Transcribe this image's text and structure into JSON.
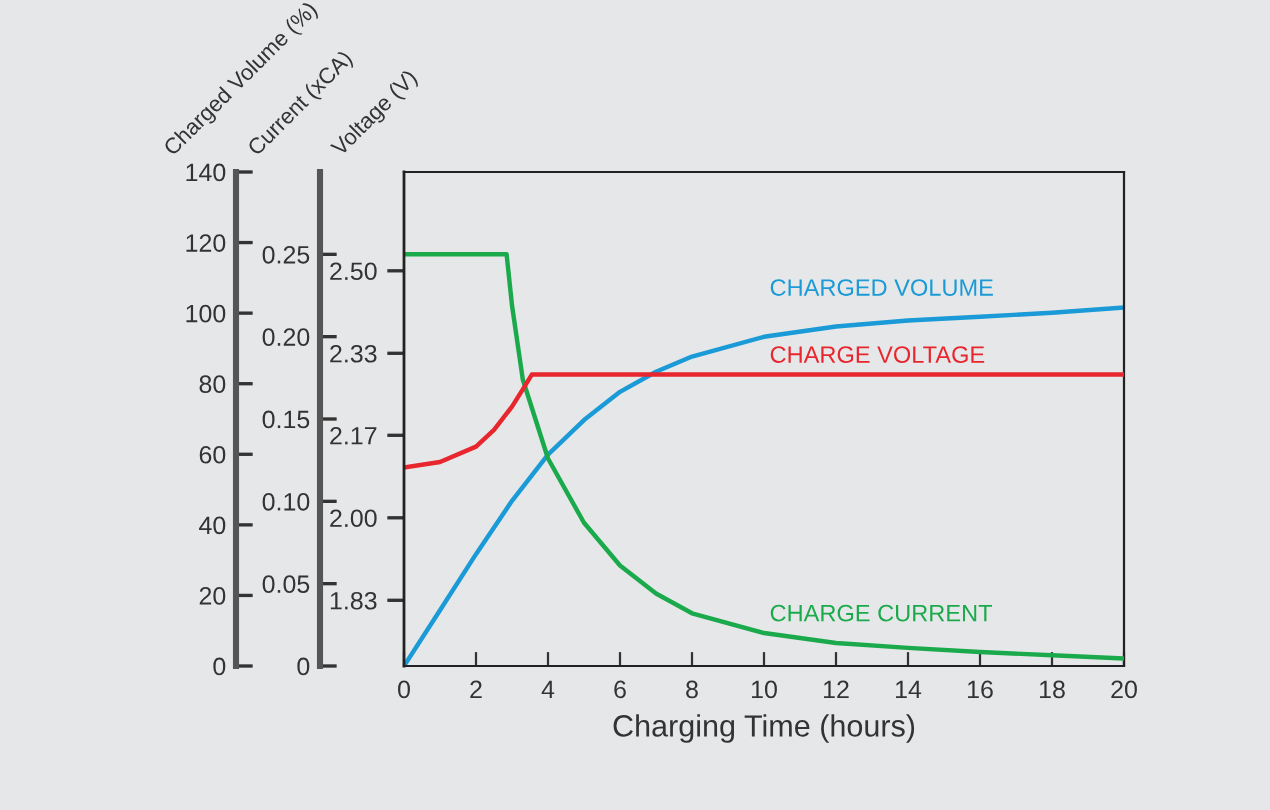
{
  "chart_data": {
    "type": "line",
    "xlabel": "Charging Time (hours)",
    "ylabel": "Charged Volume (%)",
    "y2label": "Current (xCA)",
    "y3label": "Voltage (V)",
    "xlim": [
      0,
      20
    ],
    "xticks": [
      0,
      2,
      4,
      6,
      8,
      10,
      12,
      14,
      16,
      18,
      20
    ],
    "ylim": [
      0,
      140
    ],
    "yticks": [
      0,
      20,
      40,
      60,
      80,
      100,
      120,
      140
    ],
    "y2lim": [
      0,
      0.3
    ],
    "y2ticks": [
      0,
      0.05,
      {
        "value": 0.1,
        "label": "0.10"
      },
      0.15,
      {
        "value": 0.2,
        "label": "0.20"
      },
      0.25
    ],
    "y3lim": [
      1.7,
      2.7
    ],
    "y3ticks": [
      {
        "value": 1.833,
        "label": "1.83"
      },
      {
        "value": 2.0,
        "label": "2.00"
      },
      {
        "value": 2.167,
        "label": "2.17"
      },
      {
        "value": 2.333,
        "label": "2.33"
      },
      {
        "value": 2.5,
        "label": "2.50"
      }
    ],
    "grid": false,
    "legend": false,
    "marker": "none",
    "line_style": "solid",
    "series": [
      {
        "name": "CHARGED VOLUME",
        "color": "#1a9ad6",
        "axis": "y",
        "x": [
          0,
          1,
          2,
          3,
          4,
          5,
          6,
          7,
          8,
          10,
          12,
          14,
          16,
          18,
          20
        ],
        "values": [
          0,
          15.8,
          31.7,
          46.8,
          59.9,
          69.7,
          77.7,
          83.4,
          87.7,
          93.3,
          96.2,
          97.9,
          99.0,
          100.1,
          101.6
        ]
      },
      {
        "name": "CHARGE VOLTAGE",
        "color": "#e8262d",
        "axis": "y3",
        "x": [
          0,
          1,
          2,
          2.5,
          3,
          3.3,
          3.55,
          20
        ],
        "values": [
          2.102,
          2.113,
          2.144,
          2.178,
          2.225,
          2.26,
          2.29,
          2.29
        ]
      },
      {
        "name": "CHARGE CURRENT",
        "color": "#1aaa4b",
        "axis": "y2",
        "x": [
          0,
          2.85,
          3.0,
          3.3,
          4,
          5,
          6,
          7,
          8,
          10,
          12,
          14,
          16,
          18,
          20
        ],
        "values": [
          0.25,
          0.25,
          0.219,
          0.174,
          0.126,
          0.087,
          0.061,
          0.044,
          0.032,
          0.02,
          0.014,
          0.011,
          0.0085,
          0.0065,
          0.0045
        ]
      }
    ]
  }
}
